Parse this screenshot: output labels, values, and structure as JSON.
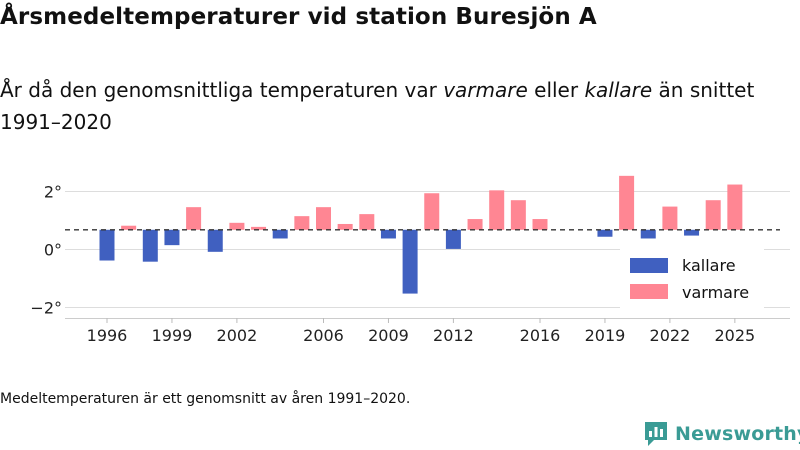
{
  "title": "Årsmedeltemperaturer vid station Buresjön A",
  "subtitle": {
    "part1": "År då den genomsnittliga temperaturen var ",
    "warmer": "varmare",
    "part2": " eller ",
    "colder": "kallare",
    "part3": " än snittet 1991–2020"
  },
  "footnote": "Medeltemperaturen är ett genomsnitt av åren 1991–2020.",
  "brand": "Newsworthy",
  "colors": {
    "warm": "#ff8693",
    "cold": "#4060c0",
    "brand": "#3a9b95",
    "grid": "#dddddd",
    "ref": "#333333"
  },
  "chart_data": {
    "type": "bar",
    "title": "Årsmedeltemperaturer vid station Buresjön A",
    "xlabel": "",
    "ylabel": "",
    "baseline": 0.68,
    "baseline_style": "dashed",
    "ylim": [
      -2.4,
      3.0
    ],
    "yticks": [
      {
        "value": 2,
        "label": "2°"
      },
      {
        "value": 0,
        "label": "0°"
      },
      {
        "value": -2,
        "label": "−2°"
      }
    ],
    "xticks": [
      1996,
      1999,
      2002,
      2006,
      2009,
      2012,
      2016,
      2019,
      2022,
      2025
    ],
    "legend": {
      "position": "bottom-right",
      "items": [
        {
          "key": "cold",
          "label": "kallare"
        },
        {
          "key": "warm",
          "label": "varmare"
        }
      ]
    },
    "series": [
      {
        "year": 1996,
        "value": -0.38
      },
      {
        "year": 1997,
        "value": 0.82
      },
      {
        "year": 1998,
        "value": -0.42
      },
      {
        "year": 1999,
        "value": 0.15
      },
      {
        "year": 2000,
        "value": 1.46
      },
      {
        "year": 2001,
        "value": -0.08
      },
      {
        "year": 2002,
        "value": 0.92
      },
      {
        "year": 2003,
        "value": 0.78
      },
      {
        "year": 2004,
        "value": 0.38
      },
      {
        "year": 2005,
        "value": 1.15
      },
      {
        "year": 2006,
        "value": 1.46
      },
      {
        "year": 2007,
        "value": 0.88
      },
      {
        "year": 2008,
        "value": 1.22
      },
      {
        "year": 2009,
        "value": 0.38
      },
      {
        "year": 2010,
        "value": -1.52
      },
      {
        "year": 2011,
        "value": 1.94
      },
      {
        "year": 2012,
        "value": 0.02
      },
      {
        "year": 2013,
        "value": 1.05
      },
      {
        "year": 2014,
        "value": 2.04
      },
      {
        "year": 2015,
        "value": 1.7
      },
      {
        "year": 2016,
        "value": 1.05
      },
      {
        "year": 2017,
        "value": 0.7
      },
      {
        "year": 2018,
        "value": 0.7
      },
      {
        "year": 2019,
        "value": 0.44
      },
      {
        "year": 2020,
        "value": 2.54
      },
      {
        "year": 2021,
        "value": 0.38
      },
      {
        "year": 2022,
        "value": 1.48
      },
      {
        "year": 2023,
        "value": 0.48
      },
      {
        "year": 2024,
        "value": 1.7
      },
      {
        "year": 2025,
        "value": 2.24
      }
    ]
  }
}
